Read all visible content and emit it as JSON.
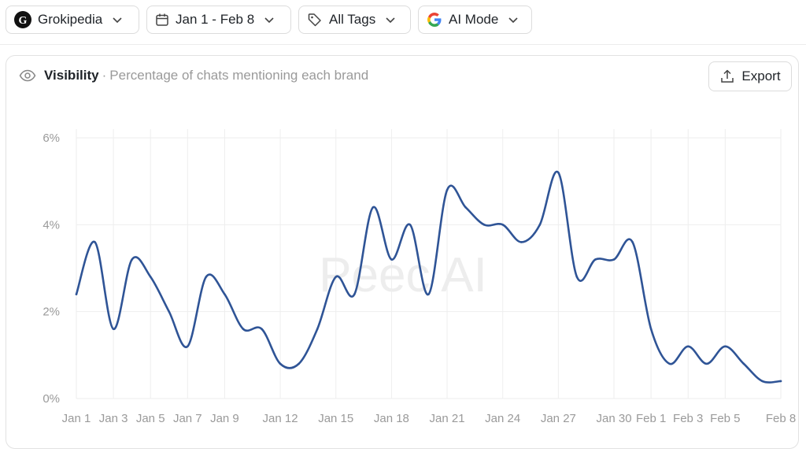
{
  "filters": {
    "brand": {
      "label": "Grokipedia",
      "logo": "G",
      "icon": "grokipedia-logo"
    },
    "date_range": {
      "label": "Jan 1 - Feb 8",
      "icon": "calendar-icon"
    },
    "tags": {
      "label": "All Tags",
      "icon": "tag-icon"
    },
    "mode": {
      "label": "AI Mode",
      "icon": "google-icon"
    }
  },
  "card": {
    "title": "Visibility",
    "separator": "·",
    "subtitle": "Percentage of chats mentioning each brand",
    "export_label": "Export",
    "watermark": "Peec AI"
  },
  "chart_data": {
    "type": "line",
    "x": [
      "Jan 1",
      "Jan 2",
      "Jan 3",
      "Jan 4",
      "Jan 5",
      "Jan 6",
      "Jan 7",
      "Jan 8",
      "Jan 9",
      "Jan 10",
      "Jan 11",
      "Jan 12",
      "Jan 13",
      "Jan 14",
      "Jan 15",
      "Jan 16",
      "Jan 17",
      "Jan 18",
      "Jan 19",
      "Jan 20",
      "Jan 21",
      "Jan 22",
      "Jan 23",
      "Jan 24",
      "Jan 25",
      "Jan 26",
      "Jan 27",
      "Jan 28",
      "Jan 29",
      "Jan 30",
      "Jan 31",
      "Feb 1",
      "Feb 2",
      "Feb 3",
      "Feb 4",
      "Feb 5",
      "Feb 6",
      "Feb 7",
      "Feb 8"
    ],
    "x_tick_labels": [
      "Jan 1",
      "Jan 3",
      "Jan 5",
      "Jan 7",
      "Jan 9",
      "Jan 12",
      "Jan 15",
      "Jan 18",
      "Jan 21",
      "Jan 24",
      "Jan 27",
      "Jan 30",
      "Feb 1",
      "Feb 3",
      "Feb 5",
      "Feb 8"
    ],
    "y_tick_labels": [
      "0%",
      "2%",
      "4%",
      "6%"
    ],
    "ylim": [
      0,
      6.2
    ],
    "series": [
      {
        "values": [
          2.4,
          3.6,
          1.6,
          3.2,
          2.8,
          2.0,
          1.2,
          2.8,
          2.4,
          1.6,
          1.6,
          0.8,
          0.8,
          1.6,
          2.8,
          2.4,
          4.4,
          3.2,
          4.0,
          2.4,
          4.8,
          4.4,
          4.0,
          4.0,
          3.6,
          4.0,
          5.2,
          2.8,
          3.2,
          3.2,
          3.6,
          1.6,
          0.8,
          1.2,
          0.8,
          1.2,
          0.8,
          0.4,
          0.4
        ],
        "color": "#2f5496"
      }
    ],
    "grid": true
  }
}
